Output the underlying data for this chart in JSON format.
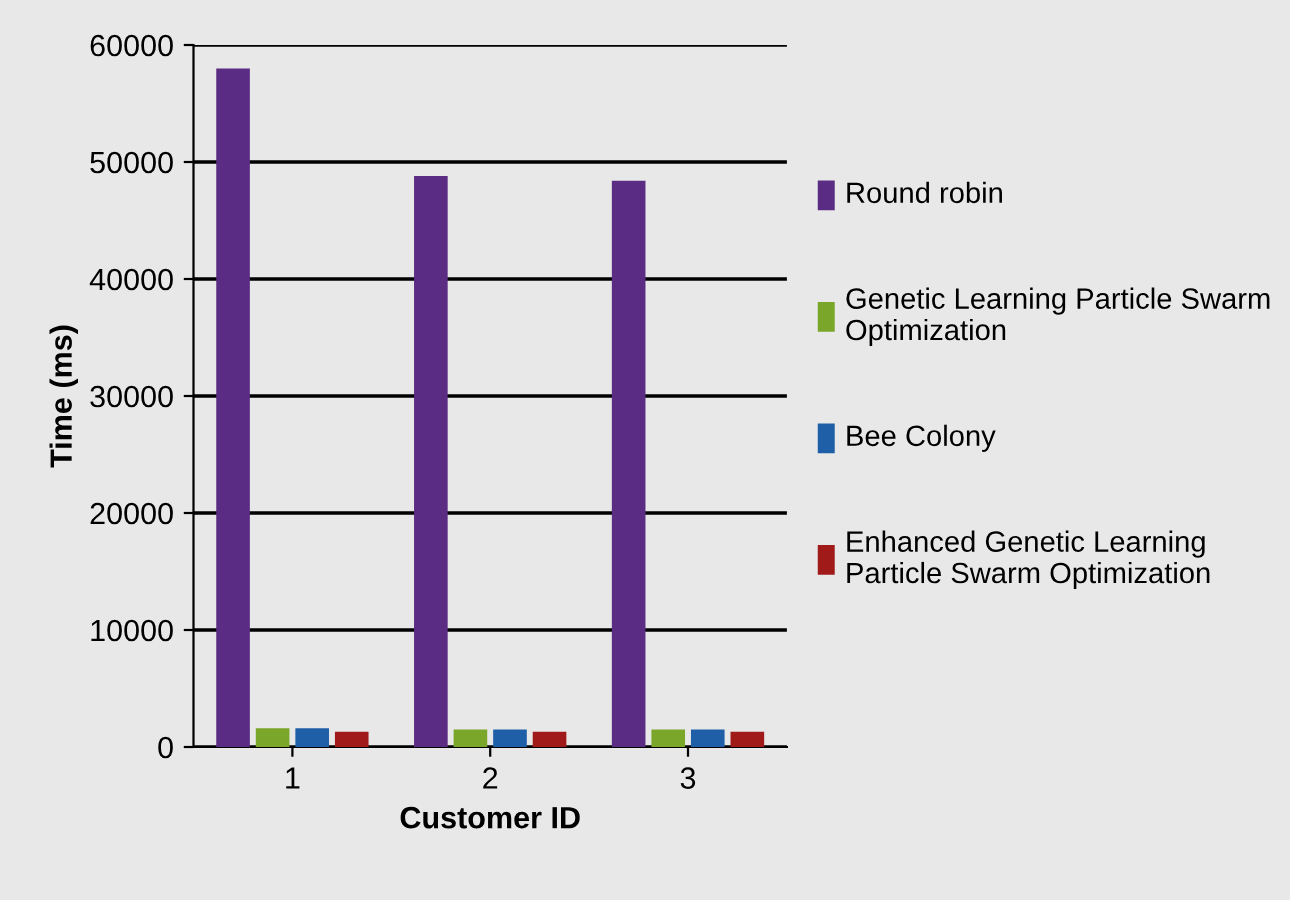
{
  "chart_data": {
    "type": "bar",
    "xlabel": "Customer ID",
    "ylabel": "Time (ms)",
    "categories": [
      "1",
      "2",
      "3"
    ],
    "series": [
      {
        "name": "Round robin",
        "color": "#5b2c83",
        "values": [
          58000,
          48800,
          48400
        ]
      },
      {
        "name": "Genetic Learning Particle Swarm Optimization",
        "color": "#7aa629",
        "values": [
          1600,
          1500,
          1500
        ]
      },
      {
        "name": "Bee Colony",
        "color": "#1f5fa8",
        "values": [
          1600,
          1500,
          1500
        ]
      },
      {
        "name": "Enhanced Genetic Learning Particle Swarm Optimization",
        "color": "#a01a1a",
        "values": [
          1300,
          1300,
          1300
        ]
      }
    ],
    "ylim": [
      0,
      60000
    ],
    "yticks": [
      0,
      10000,
      20000,
      30000,
      40000,
      50000,
      60000
    ],
    "grid": "y",
    "legend": "right"
  }
}
